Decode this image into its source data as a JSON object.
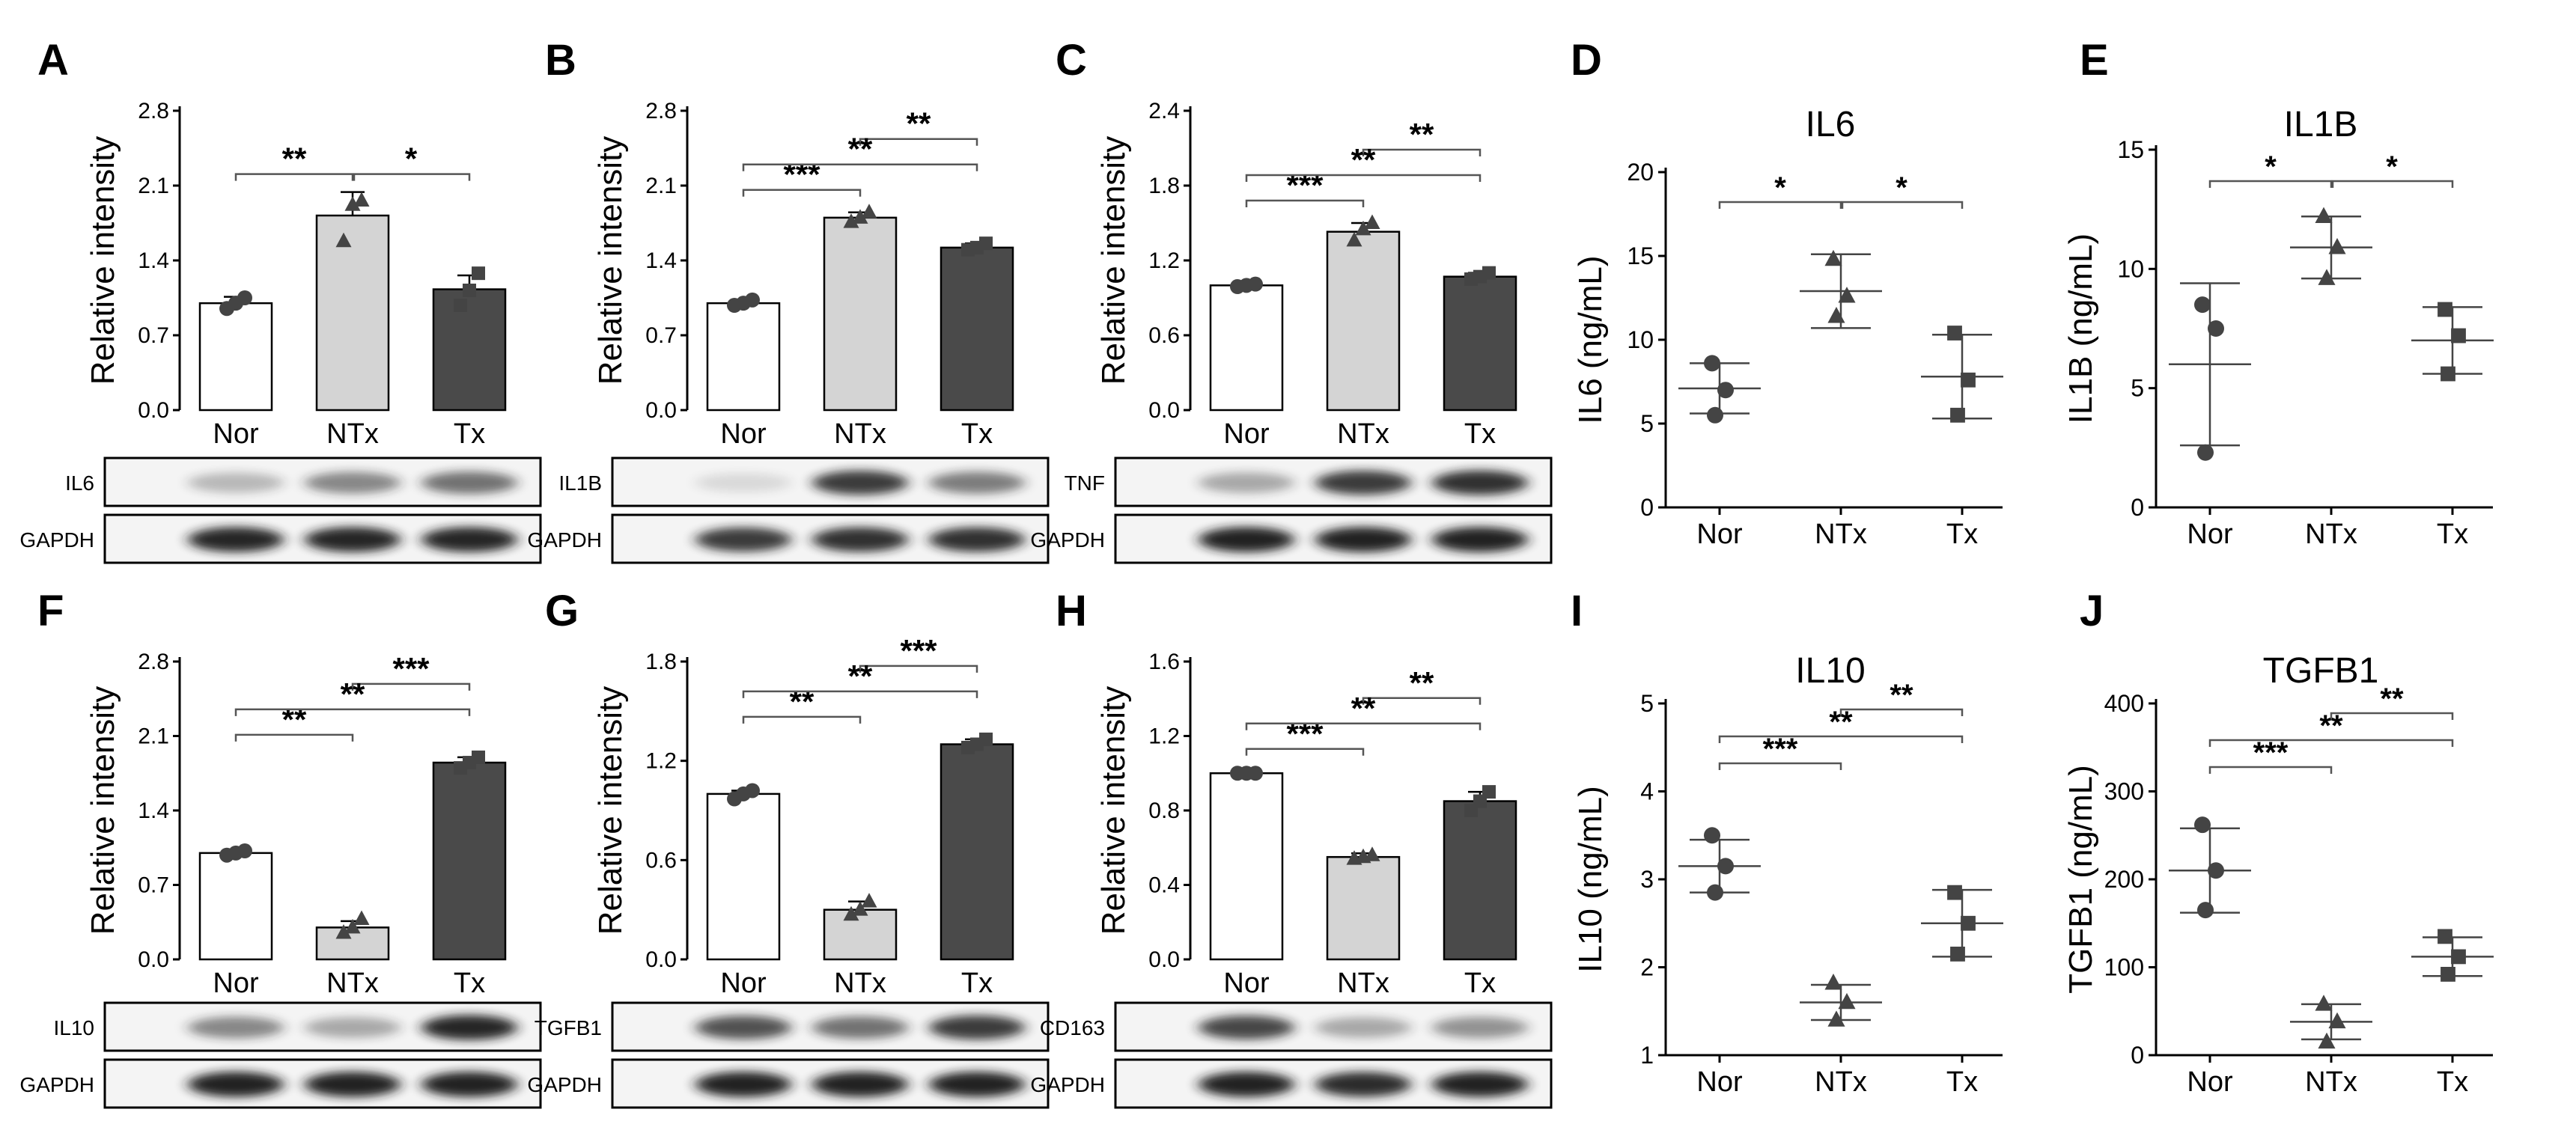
{
  "colors": {
    "axis": "#000000",
    "nor_fill": "#ffffff",
    "ntx_fill": "#d4d4d4",
    "tx_fill": "#4a4a4a",
    "marker": "#444444",
    "blot_bg": "#f4f4f4",
    "band": "#1a1a1a"
  },
  "chart_data": [
    {
      "id": "A",
      "type": "bar",
      "panel_label": "A",
      "ylabel": "Relative intensity",
      "ylim": [
        0,
        2.8
      ],
      "yticks": [
        "0.0",
        "0.7",
        "1.4",
        "2.1",
        "2.8"
      ],
      "categories": [
        "Nor",
        "NTx",
        "Tx"
      ],
      "values": [
        1.0,
        1.82,
        1.13
      ],
      "sd": [
        0.06,
        0.22,
        0.13
      ],
      "points": [
        [
          0.95,
          1.0,
          1.05
        ],
        [
          1.58,
          1.92,
          1.96
        ],
        [
          0.98,
          1.12,
          1.28
        ]
      ],
      "significance": [
        {
          "from": 0,
          "to": 1,
          "label": "**"
        },
        {
          "from": 1,
          "to": 2,
          "label": "*"
        }
      ],
      "blot": {
        "target": "IL6",
        "control": "GAPDH",
        "target_intensity": [
          0.28,
          0.5,
          0.6
        ],
        "control_intensity": [
          0.95,
          0.95,
          0.95
        ]
      }
    },
    {
      "id": "B",
      "type": "bar",
      "panel_label": "B",
      "ylabel": "Relative intensity",
      "ylim": [
        0,
        2.8
      ],
      "yticks": [
        "0.0",
        "0.7",
        "1.4",
        "2.1",
        "2.8"
      ],
      "categories": [
        "Nor",
        "NTx",
        "Tx"
      ],
      "values": [
        1.0,
        1.8,
        1.52
      ],
      "sd": [
        0.03,
        0.05,
        0.04
      ],
      "points": [
        [
          0.98,
          1.0,
          1.03
        ],
        [
          1.76,
          1.8,
          1.85
        ],
        [
          1.5,
          1.52,
          1.56
        ]
      ],
      "significance": [
        {
          "from": 0,
          "to": 1,
          "label": "***"
        },
        {
          "from": 0,
          "to": 2,
          "label": "**"
        },
        {
          "from": 1,
          "to": 2,
          "label": "**"
        }
      ],
      "blot": {
        "target": "IL1B",
        "control": "GAPDH",
        "target_intensity": [
          0.12,
          0.85,
          0.55
        ],
        "control_intensity": [
          0.85,
          0.9,
          0.9
        ]
      }
    },
    {
      "id": "C",
      "type": "bar",
      "panel_label": "C",
      "ylabel": "Relative intensity",
      "ylim": [
        0,
        2.4
      ],
      "yticks": [
        "0.0",
        "0.6",
        "1.2",
        "1.8",
        "2.4"
      ],
      "categories": [
        "Nor",
        "NTx",
        "Tx"
      ],
      "values": [
        1.0,
        1.43,
        1.07
      ],
      "sd": [
        0.02,
        0.07,
        0.03
      ],
      "points": [
        [
          0.99,
          1.0,
          1.01
        ],
        [
          1.36,
          1.45,
          1.5
        ],
        [
          1.05,
          1.07,
          1.1
        ]
      ],
      "significance": [
        {
          "from": 0,
          "to": 1,
          "label": "***"
        },
        {
          "from": 0,
          "to": 2,
          "label": "**"
        },
        {
          "from": 1,
          "to": 2,
          "label": "**"
        }
      ],
      "blot": {
        "target": "TNF",
        "control": "GAPDH",
        "target_intensity": [
          0.35,
          0.85,
          0.9
        ],
        "control_intensity": [
          0.97,
          0.97,
          0.97
        ]
      }
    },
    {
      "id": "F",
      "type": "bar",
      "panel_label": "F",
      "ylabel": "Relative intensity",
      "ylim": [
        0,
        2.8
      ],
      "yticks": [
        "0.0",
        "0.7",
        "1.4",
        "2.1",
        "2.8"
      ],
      "categories": [
        "Nor",
        "NTx",
        "Tx"
      ],
      "values": [
        1.0,
        0.3,
        1.85
      ],
      "sd": [
        0.03,
        0.06,
        0.05
      ],
      "points": [
        [
          0.98,
          1.0,
          1.02
        ],
        [
          0.25,
          0.3,
          0.38
        ],
        [
          1.8,
          1.85,
          1.9
        ]
      ],
      "significance": [
        {
          "from": 0,
          "to": 1,
          "label": "**"
        },
        {
          "from": 0,
          "to": 2,
          "label": "**"
        },
        {
          "from": 1,
          "to": 2,
          "label": "***"
        }
      ],
      "blot": {
        "target": "IL10",
        "control": "GAPDH",
        "target_intensity": [
          0.5,
          0.35,
          0.95
        ],
        "control_intensity": [
          0.97,
          0.97,
          0.97
        ]
      }
    },
    {
      "id": "G",
      "type": "bar",
      "panel_label": "G",
      "ylabel": "Relative intensity",
      "ylim": [
        0,
        1.8
      ],
      "yticks": [
        "0.0",
        "0.6",
        "1.2",
        "1.8"
      ],
      "categories": [
        "Nor",
        "NTx",
        "Tx"
      ],
      "values": [
        1.0,
        0.3,
        1.3
      ],
      "sd": [
        0.02,
        0.05,
        0.03
      ],
      "points": [
        [
          0.97,
          1.0,
          1.02
        ],
        [
          0.27,
          0.3,
          0.35
        ],
        [
          1.28,
          1.3,
          1.33
        ]
      ],
      "significance": [
        {
          "from": 0,
          "to": 1,
          "label": "**"
        },
        {
          "from": 0,
          "to": 2,
          "label": "**"
        },
        {
          "from": 1,
          "to": 2,
          "label": "***"
        }
      ],
      "blot": {
        "target": "TGFB1",
        "control": "GAPDH",
        "target_intensity": [
          0.75,
          0.6,
          0.85
        ],
        "control_intensity": [
          0.97,
          0.97,
          0.97
        ]
      }
    },
    {
      "id": "H",
      "type": "bar",
      "panel_label": "H",
      "ylabel": "Relative intensity",
      "ylim": [
        0,
        1.6
      ],
      "yticks": [
        "0.0",
        "0.4",
        "0.8",
        "1.2",
        "1.6"
      ],
      "categories": [
        "Nor",
        "NTx",
        "Tx"
      ],
      "values": [
        1.0,
        0.55,
        0.85
      ],
      "sd": [
        0.01,
        0.02,
        0.05
      ],
      "points": [
        [
          1.0,
          1.0,
          1.0
        ],
        [
          0.54,
          0.55,
          0.56
        ],
        [
          0.8,
          0.85,
          0.9
        ]
      ],
      "significance": [
        {
          "from": 0,
          "to": 1,
          "label": "***"
        },
        {
          "from": 0,
          "to": 2,
          "label": "**"
        },
        {
          "from": 1,
          "to": 2,
          "label": "**"
        }
      ],
      "blot": {
        "target": "CD163",
        "control": "GAPDH",
        "target_intensity": [
          0.8,
          0.35,
          0.45
        ],
        "control_intensity": [
          0.97,
          0.92,
          0.97
        ]
      }
    },
    {
      "id": "D",
      "type": "scatter",
      "panel_label": "D",
      "title": "IL6",
      "ylabel": "IL6 (ng/mL)",
      "ylim": [
        0,
        20
      ],
      "yticks": [
        "0",
        "5",
        "10",
        "15",
        "20"
      ],
      "categories": [
        "Nor",
        "NTx",
        "Tx"
      ],
      "means": [
        7.1,
        12.9,
        7.8
      ],
      "sd": [
        1.5,
        2.2,
        2.5
      ],
      "points": [
        [
          5.5,
          7.0,
          8.6
        ],
        [
          11.4,
          12.6,
          14.8
        ],
        [
          5.5,
          7.6,
          10.4
        ]
      ],
      "significance": [
        {
          "from": 0,
          "to": 1,
          "label": "*"
        },
        {
          "from": 1,
          "to": 2,
          "label": "*"
        }
      ]
    },
    {
      "id": "E",
      "type": "scatter",
      "panel_label": "E",
      "title": "IL1B",
      "ylabel": "IL1B (ng/mL)",
      "ylim": [
        0,
        15
      ],
      "yticks": [
        "0",
        "5",
        "10",
        "15"
      ],
      "categories": [
        "Nor",
        "NTx",
        "Tx"
      ],
      "means": [
        6.0,
        10.9,
        7.0
      ],
      "sd": [
        3.4,
        1.3,
        1.4
      ],
      "points": [
        [
          2.3,
          7.5,
          8.5
        ],
        [
          9.6,
          10.9,
          12.2
        ],
        [
          5.6,
          7.2,
          8.3
        ]
      ],
      "significance": [
        {
          "from": 0,
          "to": 1,
          "label": "*"
        },
        {
          "from": 1,
          "to": 2,
          "label": "*"
        }
      ]
    },
    {
      "id": "I",
      "type": "scatter",
      "panel_label": "I",
      "title": "IL10",
      "ylabel": "IL10 (ng/mL)",
      "ylim": [
        1,
        5
      ],
      "yticks": [
        "1",
        "2",
        "3",
        "4",
        "5"
      ],
      "categories": [
        "Nor",
        "NTx",
        "Tx"
      ],
      "means": [
        3.15,
        1.6,
        2.5
      ],
      "sd": [
        0.3,
        0.2,
        0.38
      ],
      "points": [
        [
          2.85,
          3.15,
          3.5
        ],
        [
          1.4,
          1.6,
          1.82
        ],
        [
          2.15,
          2.5,
          2.85
        ]
      ],
      "significance": [
        {
          "from": 0,
          "to": 1,
          "label": "***"
        },
        {
          "from": 0,
          "to": 2,
          "label": "**"
        },
        {
          "from": 1,
          "to": 2,
          "label": "**"
        }
      ]
    },
    {
      "id": "J",
      "type": "scatter",
      "panel_label": "J",
      "title": "TGFB1",
      "ylabel": "TGFB1 (ng/mL)",
      "ylim": [
        0,
        400
      ],
      "yticks": [
        "0",
        "100",
        "200",
        "300",
        "400"
      ],
      "categories": [
        "Nor",
        "NTx",
        "Tx"
      ],
      "means": [
        210,
        38,
        112
      ],
      "sd": [
        48,
        20,
        22
      ],
      "points": [
        [
          165,
          210,
          262
        ],
        [
          15,
          38,
          58
        ],
        [
          92,
          112,
          135
        ]
      ],
      "significance": [
        {
          "from": 0,
          "to": 1,
          "label": "***"
        },
        {
          "from": 0,
          "to": 2,
          "label": "**"
        },
        {
          "from": 1,
          "to": 2,
          "label": "**"
        }
      ]
    }
  ]
}
